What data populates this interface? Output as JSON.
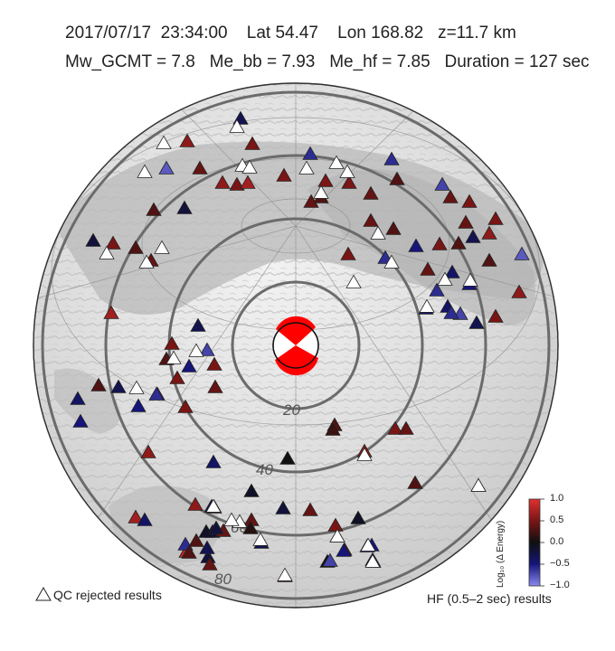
{
  "header": {
    "date": "2017/07/17",
    "time": "23:34:00",
    "lat": "Lat 54.47",
    "lon": "Lon 168.82",
    "depth": "z=11.7 km",
    "mw": "Mw_GCMT = 7.8",
    "me_bb": "Me_bb = 7.93",
    "me_hf": "Me_hf = 7.85",
    "duration": "Duration = 127 sec"
  },
  "map": {
    "distance_labels": [
      "20",
      "40",
      "60",
      "80"
    ],
    "colors": {
      "ring": "#6b6b6b",
      "red": "#8b1a1a",
      "dark": "#1a1a1a",
      "blue": "#1a1a7a",
      "white": "#ffffff",
      "beachball_red": "#ff0000"
    }
  },
  "legend": {
    "qc_rejected": "QC rejected results",
    "hf_results": "HF (0.5–2 sec) results"
  },
  "colorbar": {
    "title": "Log₁₀ (Δ Energy)",
    "ticks": [
      "1.0",
      "0.5",
      "0.0",
      "−0.5",
      "−1.0"
    ],
    "min": -1.0,
    "max": 1.0
  },
  "stations": {
    "values": [
      0.6,
      0.5,
      -0.3,
      -0.8,
      0.4,
      0.3,
      -0.2,
      0.5,
      0.6,
      0.7,
      0.5,
      0.3,
      -0.2,
      0.4,
      -0.6,
      0.5,
      0.5,
      0.4,
      0.5,
      0.3,
      -0.6,
      0.4,
      0.3,
      -0.7,
      0.4,
      0.5,
      0.4,
      -0.3,
      0.5,
      0.6,
      0.3,
      0.5,
      0.4,
      -0.4,
      -0.5,
      -0.6,
      -0.4,
      -0.7,
      -0.3,
      0.6,
      0.5,
      0.4,
      0.3,
      -0.5,
      -0.4,
      -0.6,
      0.5,
      -0.6,
      0.3,
      -0.8,
      -0.3,
      0.5,
      -0.7,
      -0.5,
      0.3,
      0.7,
      0.5,
      0.4,
      0.5,
      0.4,
      -0.3,
      0.3,
      -0.4,
      -0.5,
      0.5,
      -0.5,
      -0.6,
      -0.4,
      0.6,
      0.7,
      0.8,
      -0.2,
      0.3,
      -0.1,
      0.0,
      -0.1,
      0.3,
      0.5,
      0.4,
      0.3,
      -0.2,
      0.4,
      0.5,
      0.3,
      0.0,
      -0.5,
      0.5,
      0.6,
      -0.2,
      0.4,
      0.5,
      -0.3,
      -0.6,
      -0.4,
      0.4,
      -0.3,
      0.3,
      -0.1,
      -0.2,
      0.1,
      -0.5,
      -0.7,
      -0.6,
      -0.5,
      0.2,
      -0.3,
      0.3,
      0.4,
      0.5,
      0.6,
      -0.2,
      0.4
    ],
    "rejected_count": 31
  }
}
